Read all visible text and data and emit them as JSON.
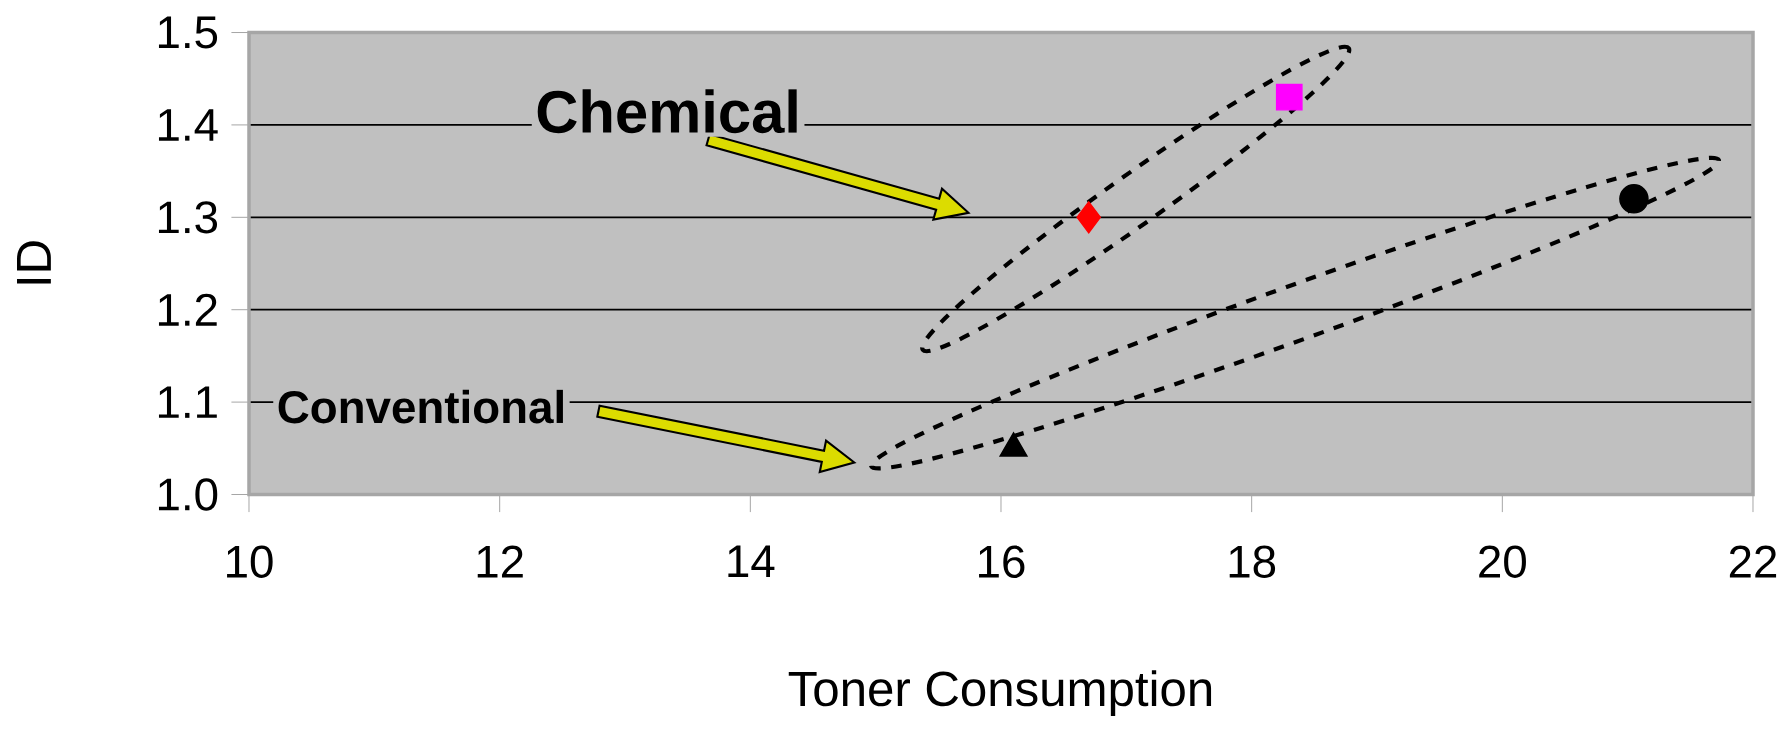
{
  "chart_data": {
    "type": "scatter",
    "xlabel": "Toner Consumption",
    "ylabel": "ID",
    "xlim": [
      10,
      22
    ],
    "xticks": [
      10,
      12,
      14,
      16,
      18,
      20,
      22
    ],
    "ylim": [
      1.0,
      1.5
    ],
    "yticks": [
      {
        "value": 1.0,
        "label": "1.0"
      },
      {
        "value": 1.1,
        "label": "1.1"
      },
      {
        "value": 1.2,
        "label": "1.2"
      },
      {
        "value": 1.3,
        "label": "1.3"
      },
      {
        "value": 1.4,
        "label": "1.4"
      },
      {
        "value": 1.5,
        "label": "1.5"
      }
    ],
    "grid": "y",
    "annotations": [
      "Chemical",
      "Conventional"
    ],
    "series": [
      {
        "marker": "diamond",
        "color": "#ff0000",
        "x": [
          16.7
        ],
        "values": [
          1.3
        ]
      },
      {
        "marker": "square",
        "color": "#ff00ff",
        "x": [
          18.3
        ],
        "values": [
          1.43
        ]
      },
      {
        "marker": "triangle",
        "color": "#000000",
        "x": [
          16.1
        ],
        "values": [
          1.05
        ]
      },
      {
        "marker": "circle",
        "color": "#000000",
        "x": [
          21.05
        ],
        "values": [
          1.32
        ]
      }
    ]
  }
}
